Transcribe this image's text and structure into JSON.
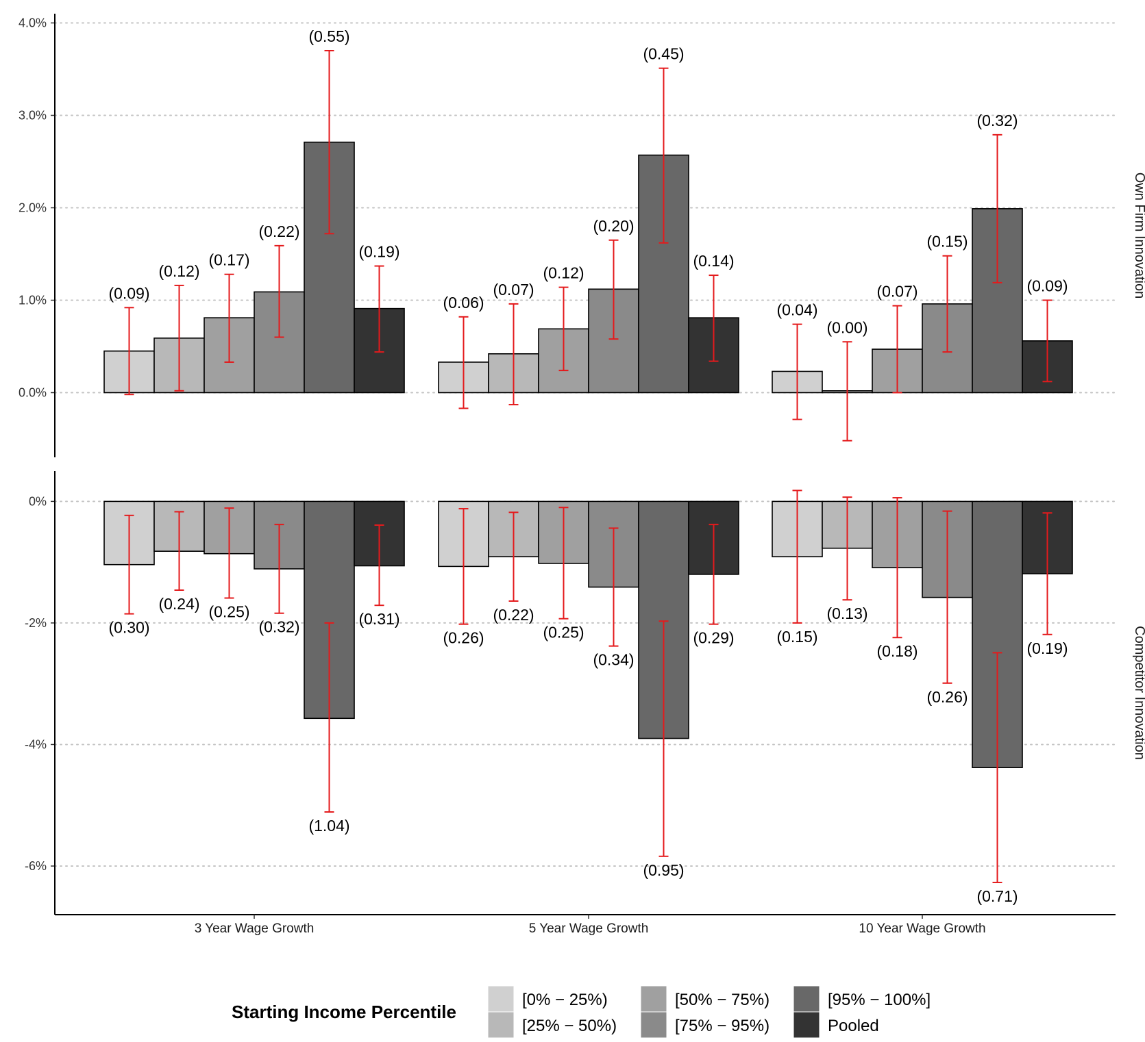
{
  "chart_data": {
    "type": "bar",
    "categories": [
      "3 Year Wage Growth",
      "5 Year Wage Growth",
      "10 Year Wage Growth"
    ],
    "series_names": [
      "[0% − 25%)",
      "[25% − 50%)",
      "[50% − 75%)",
      "[75% − 95%)",
      "[95% − 100%]",
      "Pooled"
    ],
    "series_colors": [
      "#d0d0d0",
      "#b8b8b8",
      "#a0a0a0",
      "#8a8a8a",
      "#686868",
      "#333333"
    ],
    "errorbar_color": "#e41a1c",
    "grid": "dotted-horizontal",
    "legend": {
      "title": "Starting Income Percentile",
      "placement": "bottom"
    },
    "panels": [
      {
        "strip_label": "Own Firm Innovation",
        "ylim": [
          -0.7,
          4.1
        ],
        "yticks": [
          0,
          1,
          2,
          3,
          4
        ],
        "ytick_labels": [
          "0.0%",
          "1.0%",
          "2.0%",
          "3.0%",
          "4.0%"
        ],
        "groups": [
          {
            "values": [
              0.45,
              0.59,
              0.81,
              1.09,
              2.71,
              0.91
            ],
            "ci_low": [
              -0.02,
              0.02,
              0.33,
              0.6,
              1.72,
              0.44
            ],
            "ci_high": [
              0.92,
              1.16,
              1.28,
              1.59,
              3.7,
              1.37
            ],
            "se_labels": [
              "(0.09)",
              "(0.12)",
              "(0.17)",
              "(0.22)",
              "(0.55)",
              "(0.19)"
            ]
          },
          {
            "values": [
              0.33,
              0.42,
              0.69,
              1.12,
              2.57,
              0.81
            ],
            "ci_low": [
              -0.17,
              -0.13,
              0.24,
              0.58,
              1.62,
              0.34
            ],
            "ci_high": [
              0.82,
              0.96,
              1.14,
              1.65,
              3.51,
              1.27
            ],
            "se_labels": [
              "(0.06)",
              "(0.07)",
              "(0.12)",
              "(0.20)",
              "(0.45)",
              "(0.14)"
            ]
          },
          {
            "values": [
              0.23,
              0.02,
              0.47,
              0.96,
              1.99,
              0.56
            ],
            "ci_low": [
              -0.29,
              -0.52,
              0.0,
              0.44,
              1.19,
              0.12
            ],
            "ci_high": [
              0.74,
              0.55,
              0.94,
              1.48,
              2.79,
              1.0
            ],
            "se_labels": [
              "(0.04)",
              "(0.00)",
              "(0.07)",
              "(0.15)",
              "(0.32)",
              "(0.09)"
            ]
          }
        ]
      },
      {
        "strip_label": "Competitor Innovation",
        "ylim": [
          -6.8,
          0.5
        ],
        "yticks": [
          0,
          -2,
          -4,
          -6
        ],
        "ytick_labels": [
          "0%",
          "-2%",
          "-4%",
          "-6%"
        ],
        "groups": [
          {
            "values": [
              -1.04,
              -0.82,
              -0.86,
              -1.11,
              -3.57,
              -1.06
            ],
            "ci_low": [
              -1.85,
              -1.46,
              -1.59,
              -1.84,
              -5.11,
              -1.71
            ],
            "ci_high": [
              -0.23,
              -0.17,
              -0.11,
              -0.38,
              -2.0,
              -0.39
            ],
            "se_labels": [
              "(0.30)",
              "(0.24)",
              "(0.25)",
              "(0.32)",
              "(1.04)",
              "(0.31)"
            ]
          },
          {
            "values": [
              -1.07,
              -0.91,
              -1.02,
              -1.41,
              -3.9,
              -1.2
            ],
            "ci_low": [
              -2.02,
              -1.64,
              -1.93,
              -2.38,
              -5.84,
              -2.02
            ],
            "ci_high": [
              -0.12,
              -0.18,
              -0.1,
              -0.44,
              -1.97,
              -0.38
            ],
            "se_labels": [
              "(0.26)",
              "(0.22)",
              "(0.25)",
              "(0.34)",
              "(0.95)",
              "(0.29)"
            ]
          },
          {
            "values": [
              -0.91,
              -0.77,
              -1.09,
              -1.58,
              -4.38,
              -1.19
            ],
            "ci_low": [
              -2.0,
              -1.62,
              -2.24,
              -2.99,
              -6.27,
              -2.19
            ],
            "ci_high": [
              0.18,
              0.07,
              0.06,
              -0.16,
              -2.49,
              -0.19
            ],
            "se_labels": [
              "(0.15)",
              "(0.13)",
              "(0.18)",
              "(0.26)",
              "(0.71)",
              "(0.19)"
            ]
          }
        ]
      }
    ]
  }
}
